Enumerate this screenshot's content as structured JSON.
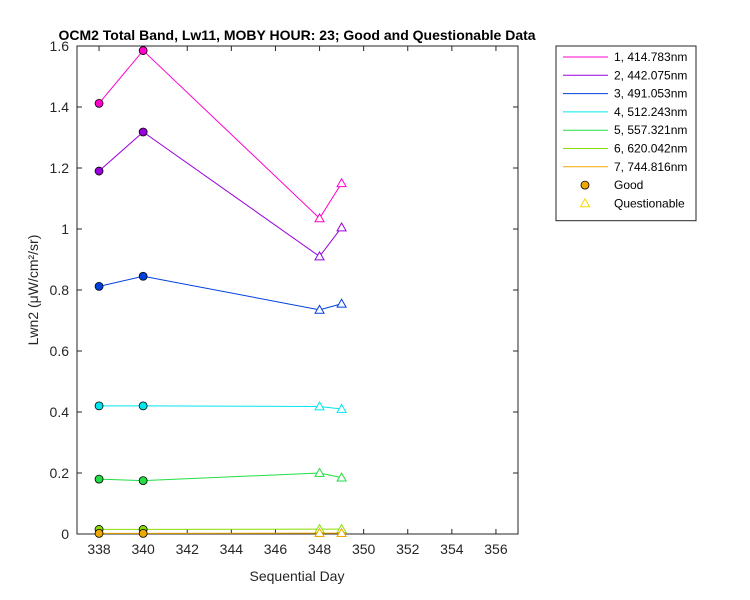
{
  "chart_data": {
    "type": "line",
    "title": "OCM2 Total Band, Lw11, MOBY HOUR: 23;   Good and Questionable Data",
    "xlabel": "Sequential Day",
    "ylabel": "Lwn2 (μW/cm²/sr)",
    "xlim": [
      337,
      357
    ],
    "ylim": [
      0,
      1.6
    ],
    "xticks": [
      338,
      340,
      342,
      344,
      346,
      348,
      350,
      352,
      354,
      356
    ],
    "yticks": [
      0,
      0.2,
      0.4,
      0.6,
      0.8,
      1,
      1.2,
      1.4,
      1.6
    ],
    "grid": false,
    "legend_location": "outside-top-right",
    "quality": [
      "good",
      "good",
      "questionable",
      "questionable"
    ],
    "x": [
      338,
      340,
      348,
      349
    ],
    "series": [
      {
        "name": "1, 414.783nm",
        "color": "#ff00cc",
        "values": [
          1.412,
          1.585,
          1.035,
          1.15
        ]
      },
      {
        "name": "2, 442.075nm",
        "color": "#9900dd",
        "values": [
          1.19,
          1.318,
          0.91,
          1.005
        ]
      },
      {
        "name": "3, 491.053nm",
        "color": "#0040dd",
        "values": [
          0.812,
          0.845,
          0.735,
          0.755
        ]
      },
      {
        "name": "4, 512.243nm",
        "color": "#00e5ee",
        "values": [
          0.42,
          0.42,
          0.418,
          0.41
        ]
      },
      {
        "name": "5, 557.321nm",
        "color": "#22dd44",
        "values": [
          0.18,
          0.175,
          0.2,
          0.185
        ]
      },
      {
        "name": "6, 620.042nm",
        "color": "#88dd00",
        "values": [
          0.015,
          0.015,
          0.016,
          0.016
        ]
      },
      {
        "name": "7, 744.816nm",
        "color": "#f0a800",
        "values": [
          0.002,
          0.002,
          0.003,
          0.003
        ]
      }
    ],
    "legend_markers": [
      {
        "name": "Good",
        "marker": "circle",
        "fill": "#f0a800",
        "stroke": "#000000"
      },
      {
        "name": "Questionable",
        "marker": "triangle",
        "fill": "none",
        "stroke": "#ffd700"
      }
    ]
  }
}
